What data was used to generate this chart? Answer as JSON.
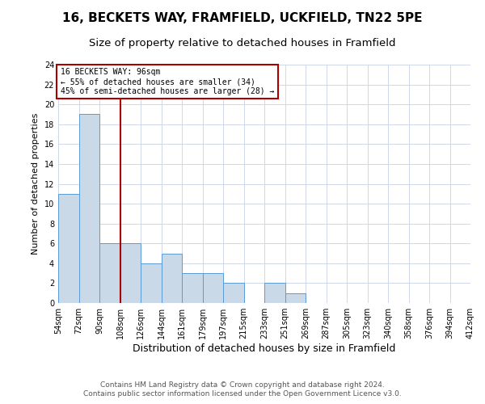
{
  "title_line1": "16, BECKETS WAY, FRAMFIELD, UCKFIELD, TN22 5PE",
  "title_line2": "Size of property relative to detached houses in Framfield",
  "xlabel": "Distribution of detached houses by size in Framfield",
  "ylabel": "Number of detached properties",
  "bin_labels": [
    "54sqm",
    "72sqm",
    "90sqm",
    "108sqm",
    "126sqm",
    "144sqm",
    "161sqm",
    "179sqm",
    "197sqm",
    "215sqm",
    "233sqm",
    "251sqm",
    "269sqm",
    "287sqm",
    "305sqm",
    "323sqm",
    "340sqm",
    "358sqm",
    "376sqm",
    "394sqm",
    "412sqm"
  ],
  "bar_values": [
    11,
    19,
    6,
    6,
    4,
    5,
    3,
    3,
    2,
    0,
    2,
    1,
    0,
    0,
    0,
    0,
    0,
    0,
    0,
    0
  ],
  "bar_color": "#c9d9e8",
  "bar_edge_color": "#5b9bd5",
  "ylim": [
    0,
    24
  ],
  "yticks": [
    0,
    2,
    4,
    6,
    8,
    10,
    12,
    14,
    16,
    18,
    20,
    22,
    24
  ],
  "vline_x_index": 2,
  "vline_color": "#aa0000",
  "annotation_title": "16 BECKETS WAY: 96sqm",
  "annotation_line1": "← 55% of detached houses are smaller (34)",
  "annotation_line2": "45% of semi-detached houses are larger (28) →",
  "annotation_box_edgecolor": "#aa0000",
  "footer_line1": "Contains HM Land Registry data © Crown copyright and database right 2024.",
  "footer_line2": "Contains public sector information licensed under the Open Government Licence v3.0.",
  "background_color": "#ffffff",
  "grid_color": "#d0d8e8",
  "title1_fontsize": 11,
  "title2_fontsize": 9.5,
  "xlabel_fontsize": 9,
  "ylabel_fontsize": 8,
  "tick_fontsize": 7,
  "footer_fontsize": 6.5
}
